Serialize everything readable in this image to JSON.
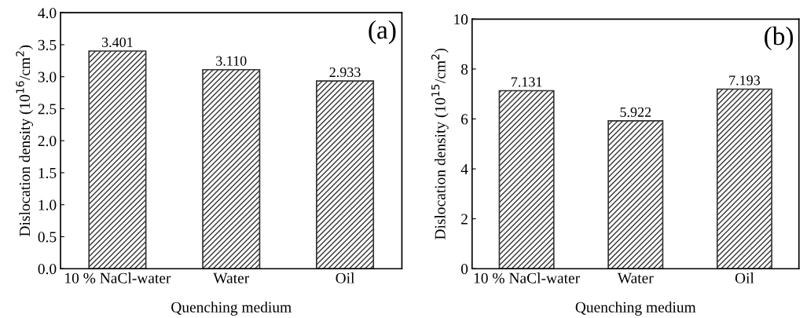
{
  "chart_data": [
    {
      "type": "bar",
      "categories": [
        "10 % NaCl-water",
        "Water",
        "Oil"
      ],
      "values": [
        3.401,
        3.11,
        2.933
      ],
      "value_labels": [
        "3.401",
        "3.110",
        "2.933"
      ],
      "color": "#333333",
      "xlabel": "Quenching medium",
      "ylabel": "Dislocation density (10$^{16}$/cm$^{2}$)",
      "ylim": [
        0,
        4.0
      ],
      "yticks": [
        {
          "value": 0,
          "label": "0.0"
        },
        0.5,
        {
          "value": 1,
          "label": "1.0"
        },
        1.5,
        {
          "value": 2,
          "label": "2.0"
        },
        2.5,
        {
          "value": 3,
          "label": "3.0"
        },
        3.5,
        {
          "value": 4,
          "label": "4.0"
        }
      ],
      "annotations": [
        "(a)"
      ],
      "grid": false
    },
    {
      "type": "bar",
      "categories": [
        "10 % NaCl-water",
        "Water",
        "Oil"
      ],
      "values": [
        7.131,
        5.922,
        7.193
      ],
      "value_labels": [
        "7.131",
        "5.922",
        "7.193"
      ],
      "color": "#333333",
      "xlabel": "Quenching medium",
      "ylabel": "Dislocation density (10$^{15}$/cm$^{2}$)",
      "ylim": [
        0,
        10
      ],
      "yticks": [
        0,
        2,
        4,
        6,
        8,
        10
      ],
      "annotations": [
        "(b)"
      ],
      "grid": false
    }
  ]
}
